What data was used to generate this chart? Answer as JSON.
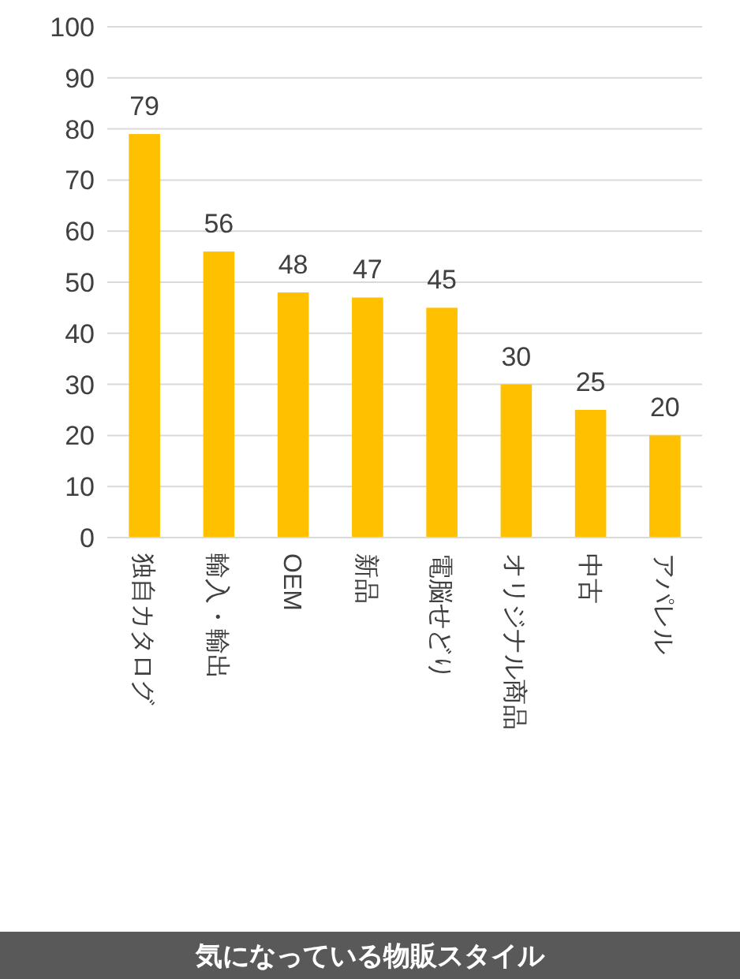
{
  "chart_data": {
    "type": "bar",
    "title": "気になっている物販スタイル",
    "categories": [
      "独自カタログ",
      "輸入・輸出",
      "OEM",
      "新品",
      "電脳せどり",
      "オリジナル商品",
      "中古",
      "アパレル"
    ],
    "values": [
      79,
      56,
      48,
      47,
      45,
      30,
      25,
      20
    ],
    "color": "#ffc000",
    "ylim": [
      0,
      100
    ],
    "yticks": [
      0,
      10,
      20,
      30,
      40,
      50,
      60,
      70,
      80,
      90,
      100
    ],
    "grid": "y",
    "data_labels": true
  }
}
